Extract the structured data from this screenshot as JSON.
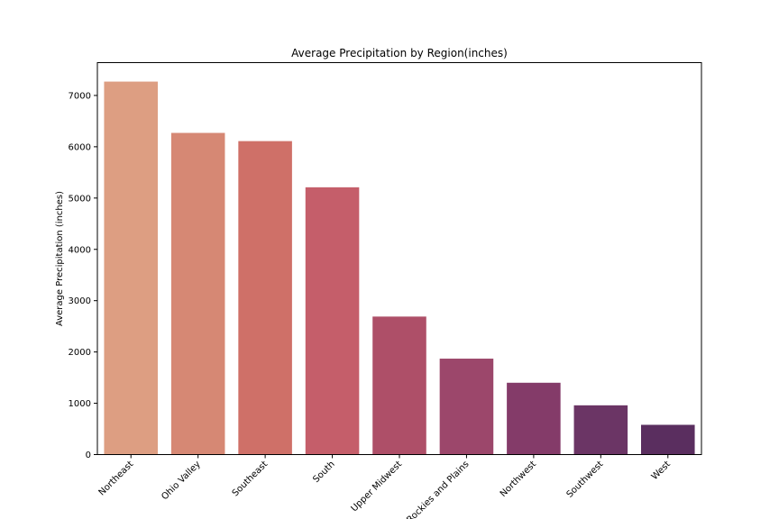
{
  "chart_data": {
    "type": "bar",
    "title": "Average Precipitation by Region(inches)",
    "xlabel": "",
    "ylabel": "Average Precipitation (inches)",
    "categories": [
      "Northeast",
      "Ohio Valley",
      "Southeast",
      "South",
      "Upper Midwest",
      "Rockies and Plains",
      "Northwest",
      "Southwest",
      "West"
    ],
    "values": [
      7270,
      6270,
      6110,
      5210,
      2690,
      1870,
      1400,
      960,
      580
    ],
    "colors": [
      "#dd9e82",
      "#d68874",
      "#cf7068",
      "#c55e6a",
      "#ae4f68",
      "#9c476b",
      "#843b69",
      "#6b3565",
      "#5a2e5f"
    ],
    "ylim": [
      0,
      7640
    ],
    "yticks": [
      0,
      1000,
      2000,
      3000,
      4000,
      5000,
      6000,
      7000
    ],
    "grid": false,
    "legend": false
  }
}
